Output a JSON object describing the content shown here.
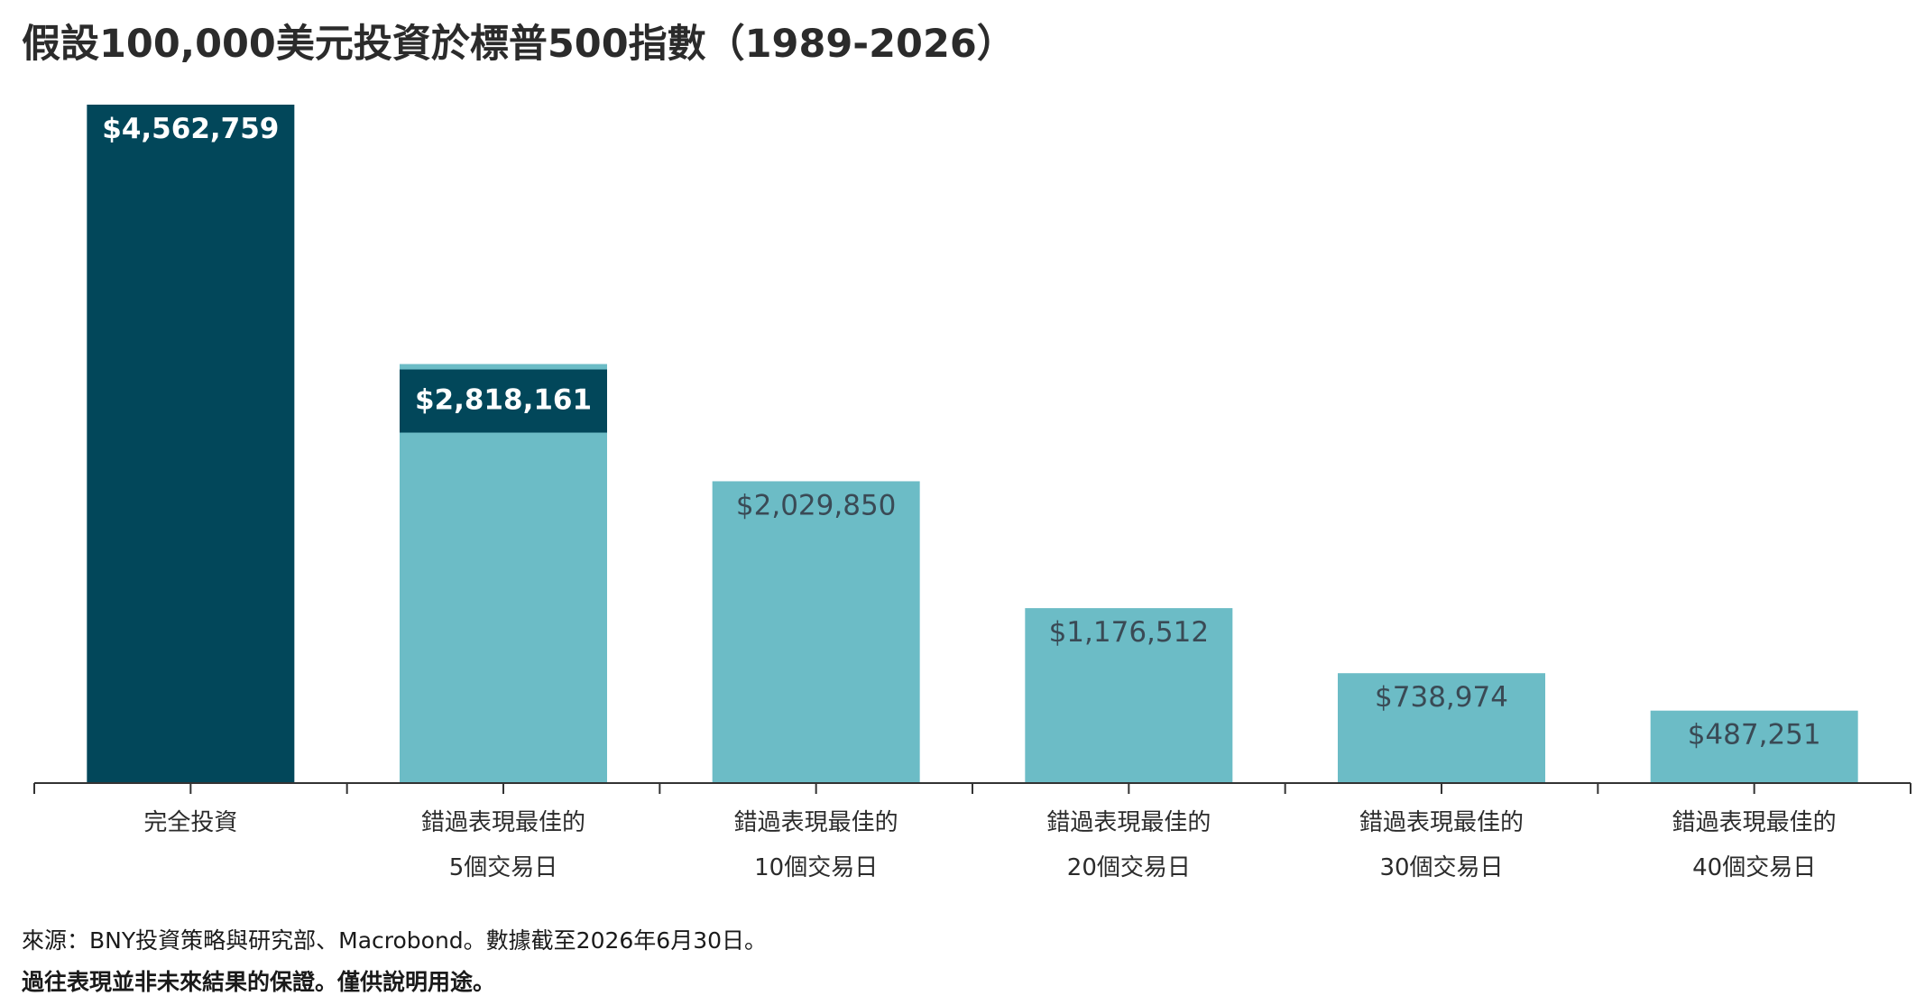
{
  "title": "假設100,000美元投資於標普500指數（1989-2026）",
  "footer": {
    "source": "來源：BNY投資策略與研究部、Macrobond。數據截至2026年6月30日。",
    "disclaimer": "過往表現並非未來結果的保證。僅供說明用途。"
  },
  "colors": {
    "dark": "#02475a",
    "light": "#6cbcc6",
    "axis": "#333333",
    "label_dark": "#ffffff",
    "label_light": "#3a4a55"
  },
  "chart_data": {
    "type": "bar",
    "title": "假設100,000美元投資於標普500指數（1989-2026）",
    "xlabel": "",
    "ylabel": "",
    "ylim": [
      0,
      4562759
    ],
    "grid": false,
    "legend": "none",
    "categories": [
      [
        "完全投資"
      ],
      [
        "錯過表現最佳的",
        "5個交易日"
      ],
      [
        "錯過表現最佳的",
        "10個交易日"
      ],
      [
        "錯過表現最佳的",
        "20個交易日"
      ],
      [
        "錯過表現最佳的",
        "30個交易日"
      ],
      [
        "錯過表現最佳的",
        "40個交易日"
      ]
    ],
    "values": [
      4562759,
      2818161,
      2029850,
      1176512,
      738974,
      487251
    ],
    "data_labels": [
      "$4,562,759",
      "$2,818,161",
      "$2,029,850",
      "$1,176,512",
      "$738,974",
      "$487,251"
    ],
    "bar_colors": [
      "dark",
      "light",
      "light",
      "light",
      "light",
      "light"
    ],
    "label_styles": [
      "dark",
      "dark",
      "light",
      "light",
      "light",
      "light"
    ]
  }
}
